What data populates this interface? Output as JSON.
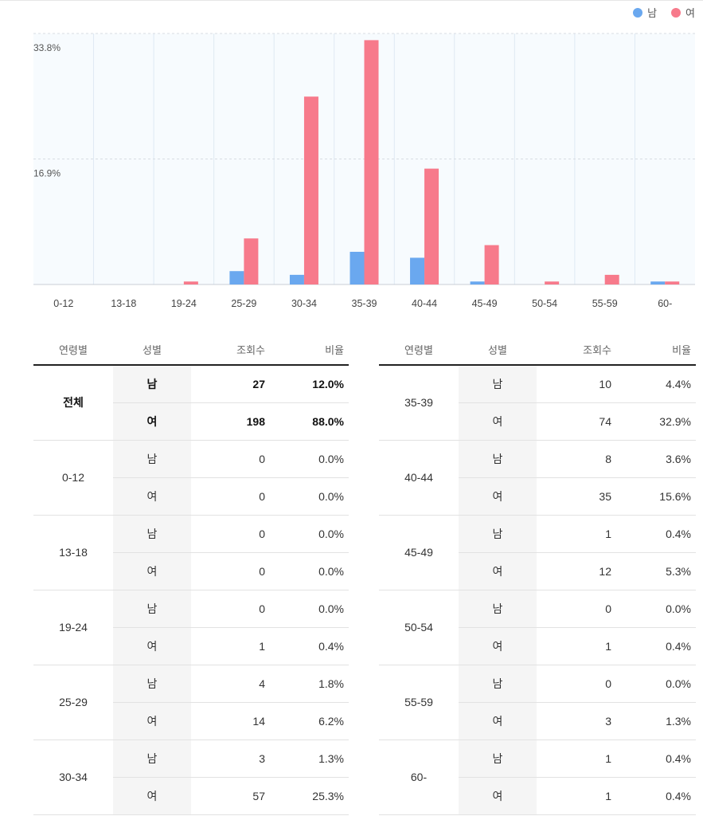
{
  "legend": {
    "male_label": "남",
    "female_label": "여"
  },
  "colors": {
    "male": "#6aa8ef",
    "female": "#f77a8b",
    "grid": "#dfe9f3",
    "plot_bg": "#f7fbfe"
  },
  "chart_data": {
    "type": "bar",
    "categories": [
      "0-12",
      "13-18",
      "19-24",
      "25-29",
      "30-34",
      "35-39",
      "40-44",
      "45-49",
      "50-54",
      "55-59",
      "60-"
    ],
    "series": [
      {
        "name": "남",
        "values": [
          0.0,
          0.0,
          0.0,
          1.8,
          1.3,
          4.4,
          3.6,
          0.4,
          0.0,
          0.0,
          0.4
        ]
      },
      {
        "name": "여",
        "values": [
          0.0,
          0.0,
          0.4,
          6.2,
          25.3,
          32.9,
          15.6,
          5.3,
          0.4,
          1.3,
          0.4
        ]
      }
    ],
    "yticks": [
      {
        "value": 16.9,
        "label": "16.9%"
      },
      {
        "value": 33.8,
        "label": "33.8%"
      }
    ],
    "ylim": [
      0,
      33.8
    ],
    "grid": true,
    "legend_position": "top-right"
  },
  "table": {
    "headers": {
      "age": "연령별",
      "gender": "성별",
      "views": "조회수",
      "ratio": "비율"
    },
    "left": [
      {
        "age": "전체",
        "bold": true,
        "rows": [
          {
            "gender": "남",
            "views": "27",
            "ratio": "12.0%"
          },
          {
            "gender": "여",
            "views": "198",
            "ratio": "88.0%"
          }
        ]
      },
      {
        "age": "0-12",
        "rows": [
          {
            "gender": "남",
            "views": "0",
            "ratio": "0.0%"
          },
          {
            "gender": "여",
            "views": "0",
            "ratio": "0.0%"
          }
        ]
      },
      {
        "age": "13-18",
        "rows": [
          {
            "gender": "남",
            "views": "0",
            "ratio": "0.0%"
          },
          {
            "gender": "여",
            "views": "0",
            "ratio": "0.0%"
          }
        ]
      },
      {
        "age": "19-24",
        "rows": [
          {
            "gender": "남",
            "views": "0",
            "ratio": "0.0%"
          },
          {
            "gender": "여",
            "views": "1",
            "ratio": "0.4%"
          }
        ]
      },
      {
        "age": "25-29",
        "rows": [
          {
            "gender": "남",
            "views": "4",
            "ratio": "1.8%"
          },
          {
            "gender": "여",
            "views": "14",
            "ratio": "6.2%"
          }
        ]
      },
      {
        "age": "30-34",
        "rows": [
          {
            "gender": "남",
            "views": "3",
            "ratio": "1.3%"
          },
          {
            "gender": "여",
            "views": "57",
            "ratio": "25.3%"
          }
        ]
      }
    ],
    "right": [
      {
        "age": "35-39",
        "rows": [
          {
            "gender": "남",
            "views": "10",
            "ratio": "4.4%"
          },
          {
            "gender": "여",
            "views": "74",
            "ratio": "32.9%"
          }
        ]
      },
      {
        "age": "40-44",
        "rows": [
          {
            "gender": "남",
            "views": "8",
            "ratio": "3.6%"
          },
          {
            "gender": "여",
            "views": "35",
            "ratio": "15.6%"
          }
        ]
      },
      {
        "age": "45-49",
        "rows": [
          {
            "gender": "남",
            "views": "1",
            "ratio": "0.4%"
          },
          {
            "gender": "여",
            "views": "12",
            "ratio": "5.3%"
          }
        ]
      },
      {
        "age": "50-54",
        "rows": [
          {
            "gender": "남",
            "views": "0",
            "ratio": "0.0%"
          },
          {
            "gender": "여",
            "views": "1",
            "ratio": "0.4%"
          }
        ]
      },
      {
        "age": "55-59",
        "rows": [
          {
            "gender": "남",
            "views": "0",
            "ratio": "0.0%"
          },
          {
            "gender": "여",
            "views": "3",
            "ratio": "1.3%"
          }
        ]
      },
      {
        "age": "60-",
        "rows": [
          {
            "gender": "남",
            "views": "1",
            "ratio": "0.4%"
          },
          {
            "gender": "여",
            "views": "1",
            "ratio": "0.4%"
          }
        ]
      }
    ]
  }
}
